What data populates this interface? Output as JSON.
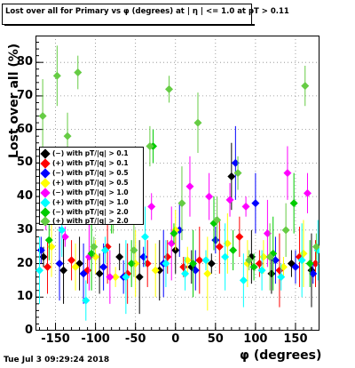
{
  "chart_data": {
    "type": "scatter",
    "title": "Lost over all for Primary vs φ (degrees) at | η | <= 1.0 at pT > 0.11",
    "xlabel": "φ (degrees)",
    "ylabel": "Lost over all (%)",
    "xlim": [
      -175,
      180
    ],
    "ylim": [
      0,
      88
    ],
    "xticks": [
      -150,
      -100,
      -50,
      0,
      50,
      100,
      150
    ],
    "yticks": [
      0,
      10,
      20,
      30,
      40,
      50,
      60,
      70,
      80
    ],
    "grid": true,
    "legend_position": "left-middle",
    "series": [
      {
        "name": "(−) with pT/|q| > 0.1",
        "color": "#000000",
        "x": [
          -165,
          -140,
          -120,
          -95,
          -70,
          -45,
          -20,
          0,
          20,
          45,
          70,
          95,
          120,
          145,
          170
        ],
        "y": [
          22,
          18,
          20,
          17,
          22,
          16,
          18,
          24,
          19,
          20,
          46,
          22,
          17,
          20,
          18
        ]
      },
      {
        "name": "(+) with pT/|q| > 0.1",
        "color": "#ff0000",
        "x": [
          -160,
          -130,
          -110,
          -85,
          -60,
          -35,
          -10,
          10,
          30,
          55,
          80,
          105,
          130,
          155,
          175
        ],
        "y": [
          19,
          21,
          18,
          25,
          17,
          20,
          22,
          19,
          21,
          25,
          28,
          20,
          18,
          22,
          20
        ]
      },
      {
        "name": "(−) with pT/|q| > 0.5",
        "color": "#0000ff",
        "x": [
          -168,
          -145,
          -115,
          -90,
          -65,
          -40,
          -15,
          5,
          25,
          50,
          75,
          100,
          125,
          150,
          172
        ],
        "y": [
          24,
          20,
          17,
          19,
          16,
          22,
          20,
          30,
          18,
          27,
          50,
          38,
          21,
          19,
          17
        ]
      },
      {
        "name": "(+) with pT/|q| > 0.5",
        "color": "#ffff00",
        "x": [
          -155,
          -125,
          -100,
          -75,
          -50,
          -25,
          0,
          15,
          40,
          65,
          90,
          110,
          135,
          160
        ],
        "y": [
          25,
          19,
          22,
          16,
          20,
          18,
          30,
          21,
          17,
          26,
          20,
          22,
          19,
          23
        ]
      },
      {
        "name": "(−) with pT/|q| > 1.0",
        "color": "#ff00ff",
        "x": [
          -162,
          -138,
          -108,
          -82,
          -58,
          -30,
          -5,
          18,
          42,
          68,
          88,
          115,
          140,
          165
        ],
        "y": [
          35,
          28,
          22,
          16,
          43,
          37,
          26,
          43,
          40,
          39,
          37,
          29,
          47,
          41
        ]
      },
      {
        "name": "(+) with pT/|q| > 1.0",
        "color": "#00ffff",
        "x": [
          -170,
          -142,
          -112,
          -88,
          -62,
          -38,
          -12,
          12,
          38,
          62,
          85,
          108,
          132,
          158,
          178
        ],
        "y": [
          18,
          30,
          9,
          24,
          16,
          28,
          20,
          17,
          21,
          22,
          15,
          18,
          16,
          21,
          24
        ]
      },
      {
        "name": "(−) with pT/|q| > 2.0",
        "color": "#00cc00",
        "x": [
          -158,
          -132,
          -105,
          -80,
          -55,
          -28,
          -2,
          22,
          48,
          72,
          98,
          122,
          148,
          168
        ],
        "y": [
          27,
          46,
          23,
          38,
          20,
          55,
          29,
          20,
          32,
          24,
          19,
          23,
          38,
          20
        ]
      },
      {
        "name": "(+) with pT/|q| > 2.0",
        "color": "#66cc44",
        "x": [
          -166,
          -148,
          -135,
          -122,
          -102,
          -78,
          -52,
          -32,
          -8,
          8,
          28,
          52,
          78,
          92,
          118,
          138,
          162,
          176
        ],
        "y": [
          64,
          76,
          58,
          77,
          25,
          39,
          24,
          55,
          72,
          38,
          62,
          33,
          47,
          21,
          22,
          30,
          73,
          25
        ]
      }
    ]
  },
  "footer": {
    "datetime": "Tue Jul  3 09:29:24 2018"
  }
}
